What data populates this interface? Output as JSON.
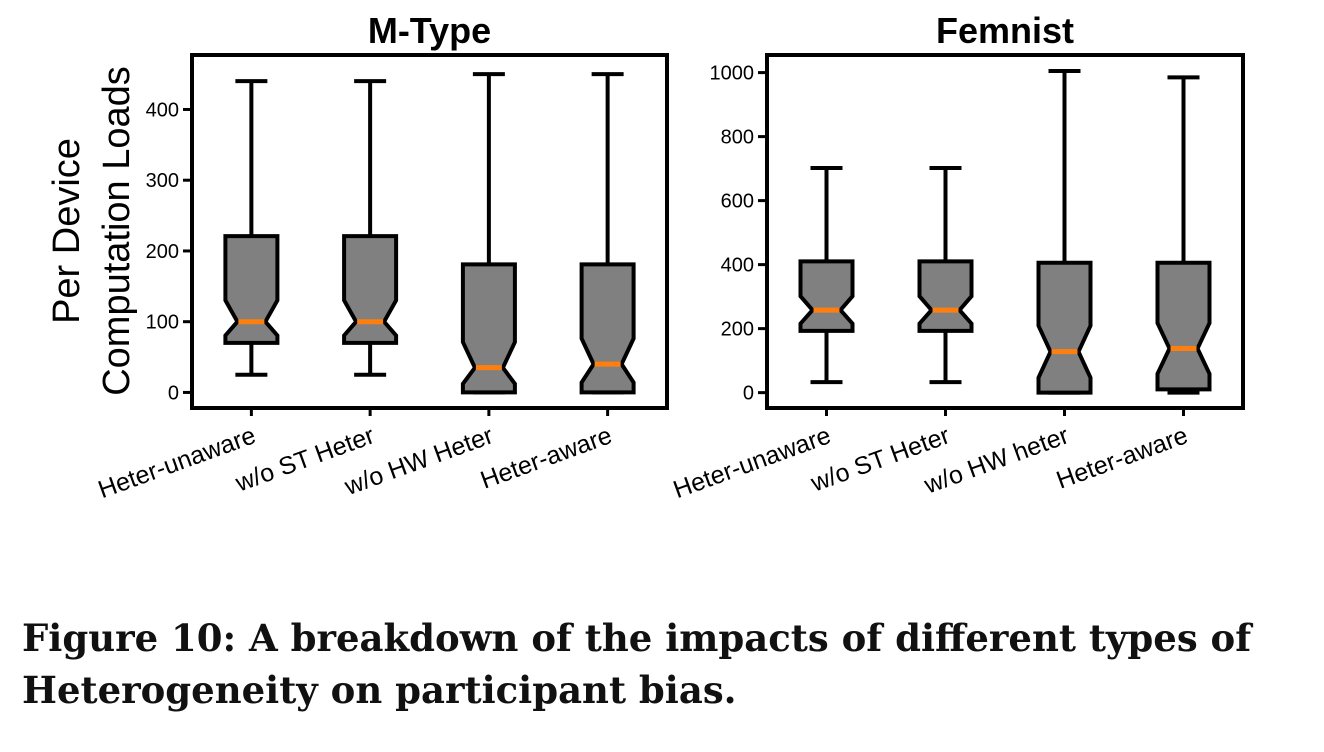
{
  "colors": {
    "box_fill": "#808080",
    "median": "#ff7f0e",
    "stroke": "#000000",
    "background": "#ffffff"
  },
  "shared_ylabel_lines": [
    "Per Device",
    "Computation Loads"
  ],
  "chart_data": [
    {
      "type": "box",
      "title": "M-Type",
      "xlabel": "",
      "ylabel": "Per Device Computation Loads",
      "ylim": [
        -22,
        477
      ],
      "yticks": [
        0,
        100,
        200,
        300,
        400
      ],
      "grid": false,
      "notched": true,
      "categories": [
        "Heter-unaware",
        "w/o ST Heter",
        "w/o HW Heter",
        "Heter-aware"
      ],
      "boxes": [
        {
          "whisker_low": 25,
          "q1": 70,
          "median": 100,
          "q3": 221,
          "whisker_high": 440
        },
        {
          "whisker_low": 25,
          "q1": 70,
          "median": 100,
          "q3": 221,
          "whisker_high": 440
        },
        {
          "whisker_low": 0,
          "q1": 0,
          "median": 35,
          "q3": 181,
          "whisker_high": 450
        },
        {
          "whisker_low": 0,
          "q1": 0,
          "median": 40,
          "q3": 181,
          "whisker_high": 450
        }
      ]
    },
    {
      "type": "box",
      "title": "Femnist",
      "xlabel": "",
      "ylabel": "",
      "ylim": [
        -48,
        1055
      ],
      "yticks": [
        0,
        200,
        400,
        600,
        800,
        1000
      ],
      "grid": false,
      "notched": true,
      "categories": [
        "Heter-unaware",
        "w/o ST Heter",
        "w/o HW heter",
        "Heter-aware"
      ],
      "boxes": [
        {
          "whisker_low": 33,
          "q1": 193,
          "median": 258,
          "q3": 410,
          "whisker_high": 702
        },
        {
          "whisker_low": 33,
          "q1": 193,
          "median": 258,
          "q3": 410,
          "whisker_high": 702
        },
        {
          "whisker_low": 0,
          "q1": 0,
          "median": 128,
          "q3": 406,
          "whisker_high": 1005
        },
        {
          "whisker_low": 0,
          "q1": 10,
          "median": 138,
          "q3": 406,
          "whisker_high": 985
        }
      ]
    }
  ],
  "caption": "Figure 10: A breakdown of the impacts of different types of Heterogeneity on participant bias."
}
